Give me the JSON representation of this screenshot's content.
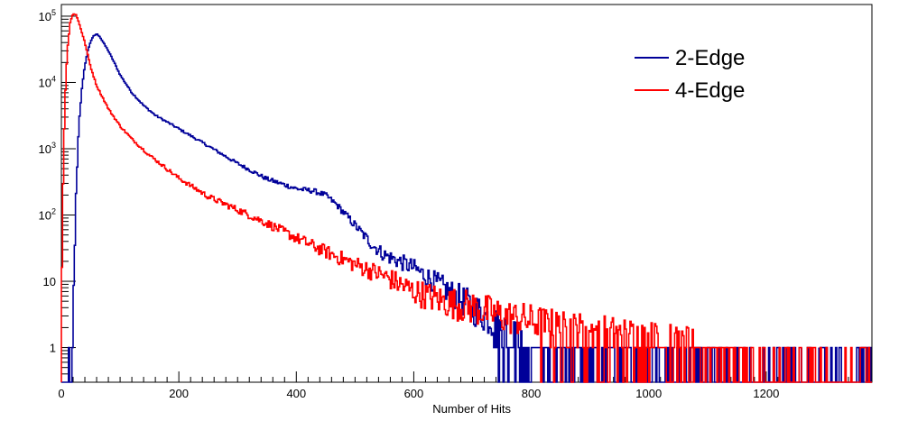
{
  "chart_data": {
    "type": "line",
    "title": "",
    "xlabel": "Number of Hits",
    "ylabel": "",
    "xlim": [
      0,
      1380
    ],
    "ylim": [
      0.3,
      150000
    ],
    "yscale": "log",
    "grid": false,
    "legend_position": "top-right",
    "x_ticks": [
      0,
      200,
      400,
      600,
      800,
      1000,
      1200
    ],
    "y_ticks": [
      {
        "value": 1,
        "label": "1"
      },
      {
        "value": 10,
        "label": "10"
      },
      {
        "value": 100,
        "label": "10",
        "sup": "2"
      },
      {
        "value": 1000,
        "label": "10",
        "sup": "3"
      },
      {
        "value": 10000,
        "label": "10",
        "sup": "4"
      },
      {
        "value": 100000,
        "label": "10",
        "sup": "5"
      }
    ],
    "series": [
      {
        "name": "2-Edge",
        "color": "#000099",
        "points": [
          [
            18,
            0.3
          ],
          [
            20,
            3
          ],
          [
            25,
            200
          ],
          [
            30,
            2500
          ],
          [
            35,
            8000
          ],
          [
            40,
            18000
          ],
          [
            45,
            30000
          ],
          [
            50,
            42000
          ],
          [
            55,
            50000
          ],
          [
            60,
            54000
          ],
          [
            65,
            50000
          ],
          [
            70,
            42000
          ],
          [
            80,
            30000
          ],
          [
            90,
            20000
          ],
          [
            100,
            13000
          ],
          [
            120,
            7000
          ],
          [
            140,
            4500
          ],
          [
            160,
            3200
          ],
          [
            200,
            2000
          ],
          [
            250,
            1100
          ],
          [
            300,
            600
          ],
          [
            350,
            350
          ],
          [
            400,
            250
          ],
          [
            430,
            230
          ],
          [
            450,
            200
          ],
          [
            470,
            140
          ],
          [
            500,
            70
          ],
          [
            530,
            35
          ],
          [
            550,
            25
          ],
          [
            600,
            16
          ],
          [
            650,
            8
          ],
          [
            700,
            4
          ],
          [
            750,
            2
          ],
          [
            800,
            1
          ],
          [
            850,
            0.6
          ],
          [
            900,
            0.5
          ],
          [
            1000,
            0.4
          ],
          [
            1100,
            0.35
          ],
          [
            1200,
            0.3
          ],
          [
            1380,
            0.3
          ]
        ],
        "spikes": [
          [
            1150,
            1
          ],
          [
            1235,
            1
          ],
          [
            1245,
            1
          ],
          [
            1260,
            1
          ],
          [
            1290,
            1
          ],
          [
            1300,
            1
          ],
          [
            1375,
            1
          ]
        ]
      },
      {
        "name": "4-Edge",
        "color": "#ff0000",
        "points": [
          [
            0,
            5
          ],
          [
            3,
            300
          ],
          [
            6,
            5000
          ],
          [
            10,
            30000
          ],
          [
            15,
            80000
          ],
          [
            20,
            110000
          ],
          [
            25,
            105000
          ],
          [
            30,
            80000
          ],
          [
            40,
            40000
          ],
          [
            50,
            17000
          ],
          [
            60,
            9000
          ],
          [
            80,
            4000
          ],
          [
            100,
            2200
          ],
          [
            120,
            1400
          ],
          [
            150,
            800
          ],
          [
            200,
            360
          ],
          [
            250,
            190
          ],
          [
            300,
            120
          ],
          [
            350,
            75
          ],
          [
            400,
            45
          ],
          [
            450,
            28
          ],
          [
            500,
            18
          ],
          [
            550,
            12
          ],
          [
            600,
            7
          ],
          [
            650,
            5
          ],
          [
            700,
            4
          ],
          [
            750,
            3
          ],
          [
            800,
            2.5
          ],
          [
            850,
            2
          ],
          [
            900,
            1.8
          ],
          [
            1000,
            1.4
          ],
          [
            1100,
            1
          ],
          [
            1150,
            0.6
          ],
          [
            1200,
            0.4
          ],
          [
            1250,
            0.3
          ],
          [
            1380,
            0.3
          ]
        ]
      }
    ]
  }
}
